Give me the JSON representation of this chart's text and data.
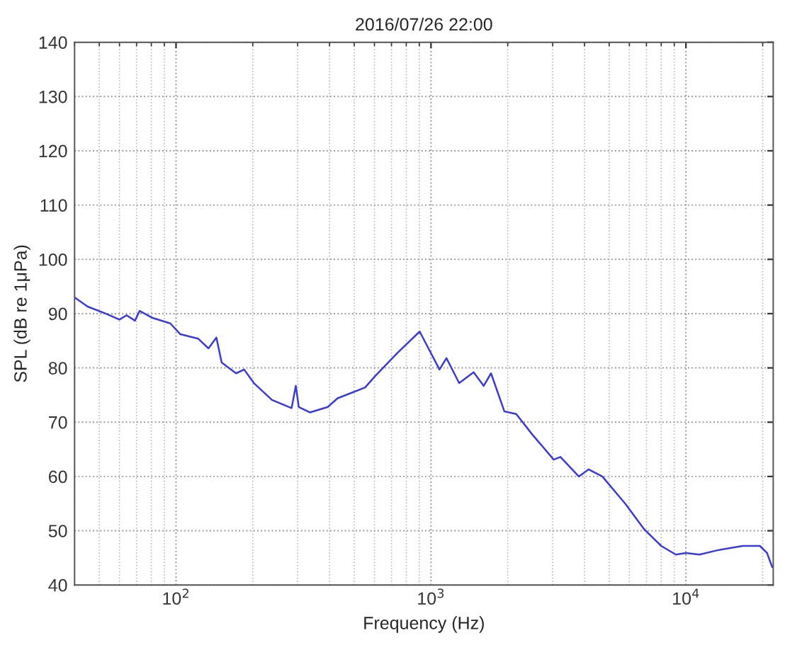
{
  "chart_data": {
    "type": "line",
    "title": "2016/07/26 22:00",
    "xlabel": "Frequency (Hz)",
    "ylabel": "SPL (dB re 1μPa)",
    "log": "x",
    "xlim": [
      40,
      22000
    ],
    "xticks": [
      {
        "value": 100,
        "label": "10$^{2}$"
      },
      {
        "value": 1000,
        "label": "10$^{3}$"
      },
      {
        "value": 10000,
        "label": "10$^{4}$"
      }
    ],
    "ylim": [
      40,
      140
    ],
    "yticks": [
      40,
      50,
      60,
      70,
      80,
      90,
      100,
      110,
      120,
      130,
      140
    ],
    "grid": true,
    "line_style": "solid",
    "marker": "none",
    "series": [
      {
        "color": "#3b3bd6",
        "x": [
          40,
          45,
          53,
          60,
          64,
          69,
          72,
          81,
          95,
          104,
          122,
          134,
          144,
          151,
          172,
          185,
          202,
          238,
          284,
          295,
          303,
          335,
          394,
          430,
          552,
          604,
          740,
          903,
          1080,
          1150,
          1290,
          1470,
          1610,
          1720,
          1940,
          2160,
          2500,
          3030,
          3220,
          3800,
          4150,
          4700,
          5800,
          6850,
          8000,
          9130,
          10000,
          11300,
          13300,
          16700,
          19500,
          20800,
          21800
        ],
        "values": [
          93,
          91.3,
          90,
          88.9,
          89.7,
          88.7,
          90.5,
          89.2,
          88.2,
          86.2,
          85.4,
          83.6,
          85.6,
          81,
          79,
          79.7,
          77.2,
          74.1,
          72.6,
          76.7,
          72.8,
          71.8,
          72.8,
          74.4,
          76.4,
          78.5,
          82.8,
          86.7,
          79.7,
          81.8,
          77.2,
          79.2,
          76.7,
          79,
          72,
          71.5,
          67.7,
          63.1,
          63.6,
          60,
          61.3,
          60,
          54.9,
          50.3,
          47.2,
          45.6,
          45.9,
          45.6,
          46.4,
          47.2,
          47.2,
          45.9,
          43.3
        ]
      }
    ]
  }
}
